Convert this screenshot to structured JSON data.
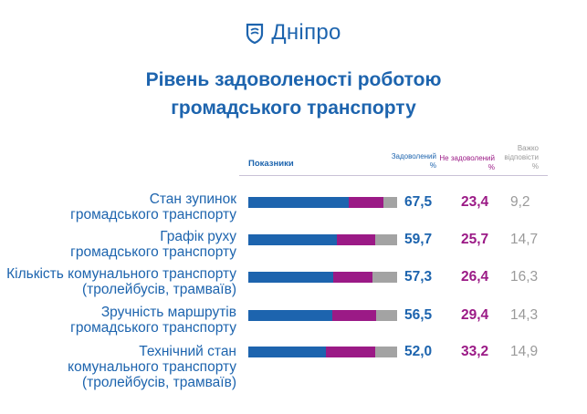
{
  "brand": {
    "logo_text": "Дніпро",
    "color": "#1d64ae"
  },
  "chart_data": {
    "type": "bar",
    "stacked": true,
    "orientation": "horizontal",
    "title": "Рівень задоволеності роботою громадського транспорту",
    "column_headers": {
      "indicators": "Показники",
      "satisfied": "Задоволений %",
      "unsatisfied": "Не задоволений %",
      "hard_to_answer": "Важко відповісти %"
    },
    "categories": [
      [
        "Стан зупинок",
        "громадського транспорту"
      ],
      [
        "Графік руху",
        "громадського транспорту"
      ],
      [
        "Кількість комунального транспорту",
        "(тролейбусів, трамваїв)"
      ],
      [
        "Зручність маршрутів",
        "громадського транспорту"
      ],
      [
        "Технічний стан",
        "комунального транспорту",
        "(тролейбусів, трамваїв)"
      ]
    ],
    "series": [
      {
        "name": "Задоволений",
        "color": "#1d64ae",
        "values": [
          "67,5",
          "59,7",
          "57,3",
          "56,5",
          "52,0"
        ]
      },
      {
        "name": "Не задоволений",
        "color": "#9b1a86",
        "values": [
          "23,4",
          "25,7",
          "26,4",
          "29,4",
          "33,2"
        ]
      },
      {
        "name": "Важко відповісти",
        "color": "#a3a3a3",
        "values": [
          "9,2",
          "14,7",
          "16,3",
          "14,3",
          "14,9"
        ]
      }
    ]
  }
}
